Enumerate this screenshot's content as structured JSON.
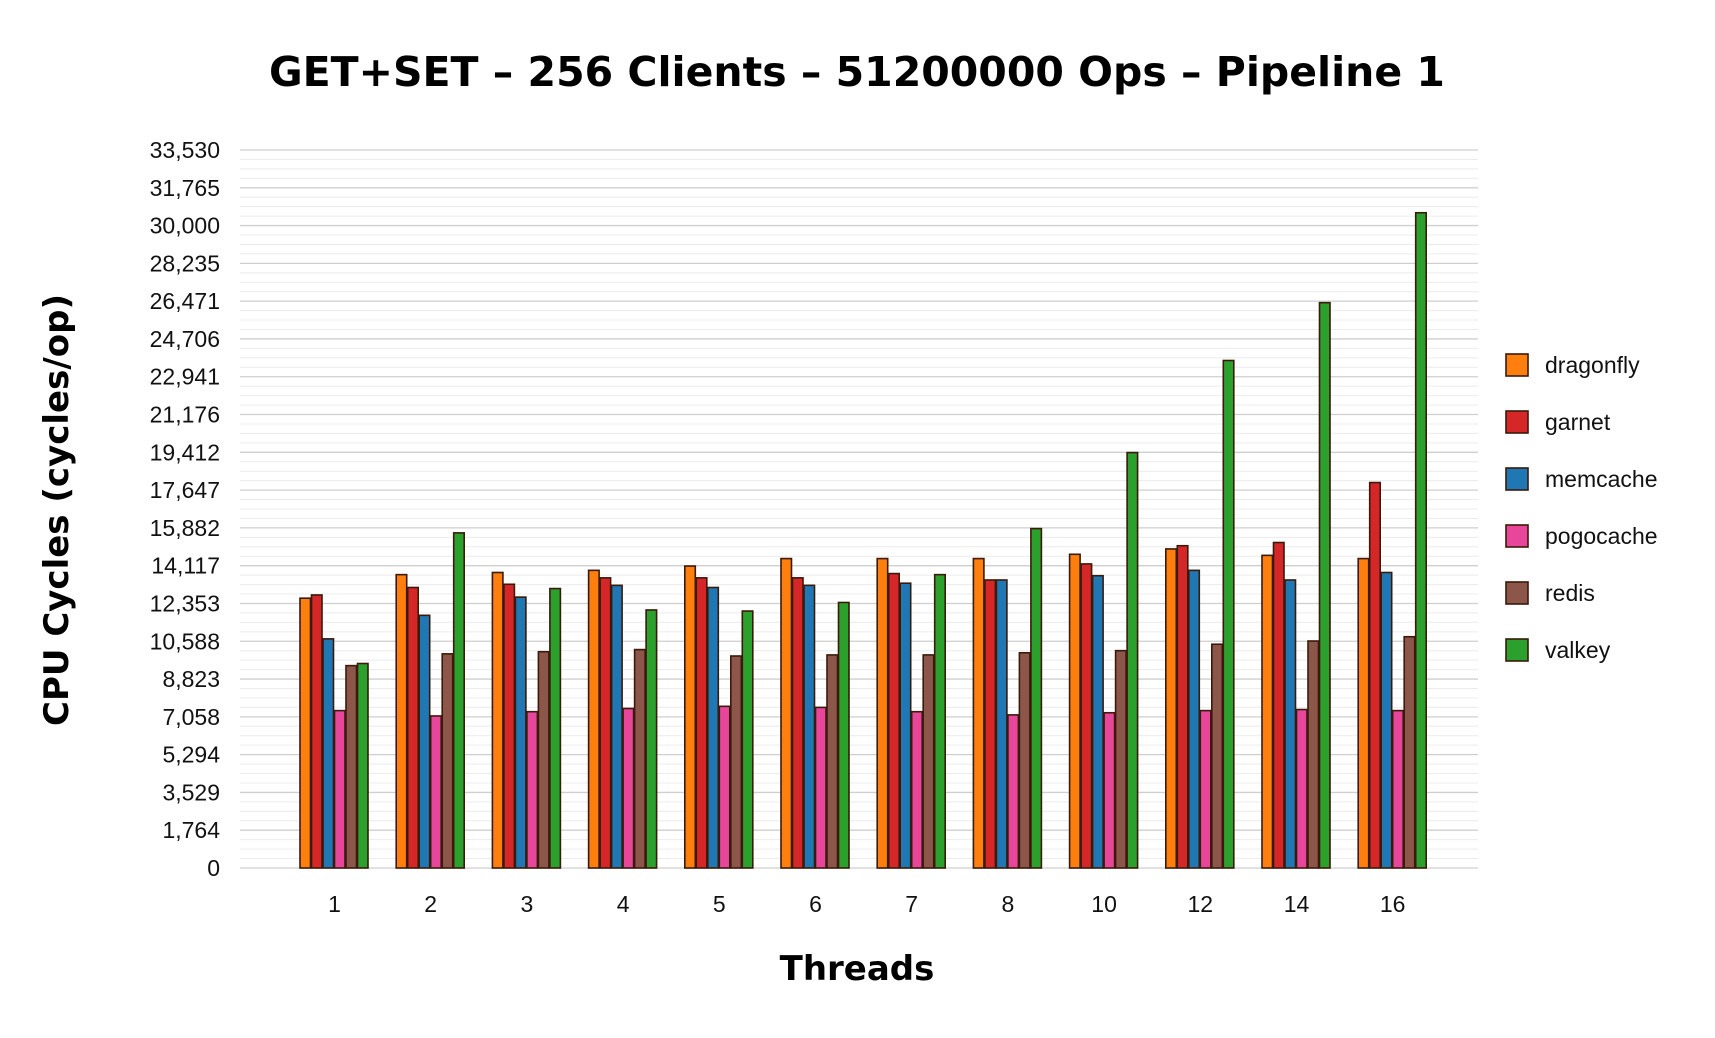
{
  "chart_data": {
    "type": "bar",
    "title": "GET+SET – 256 Clients – 51200000 Ops – Pipeline 1",
    "xlabel": "Threads",
    "ylabel": "CPU Cycles (cycles/op)",
    "ylim": [
      0,
      33530
    ],
    "yticks": [
      "0",
      "1,764",
      "3,529",
      "5,294",
      "7,058",
      "8,823",
      "10,588",
      "12,353",
      "14,117",
      "15,882",
      "17,647",
      "19,412",
      "21,176",
      "22,941",
      "24,706",
      "26,471",
      "28,235",
      "30,000",
      "31,765",
      "33,530"
    ],
    "grid": true,
    "legend_position": "right",
    "categories": [
      "1",
      "2",
      "3",
      "4",
      "5",
      "6",
      "7",
      "8",
      "10",
      "12",
      "14",
      "16"
    ],
    "series": [
      {
        "name": "dragonfly",
        "color": "#ff7f0e",
        "values": [
          12600,
          13700,
          13800,
          13900,
          14100,
          14450,
          14450,
          14450,
          14650,
          14900,
          14600,
          14450
        ]
      },
      {
        "name": "garnet",
        "color": "#d62728",
        "values": [
          12750,
          13100,
          13250,
          13550,
          13550,
          13550,
          13750,
          13450,
          14200,
          15050,
          15200,
          18000
        ]
      },
      {
        "name": "memcache",
        "color": "#1f77b4",
        "values": [
          10700,
          11800,
          12650,
          13200,
          13100,
          13200,
          13300,
          13450,
          13650,
          13900,
          13450,
          13800
        ]
      },
      {
        "name": "pogocache",
        "color": "#e7469b",
        "values": [
          7350,
          7100,
          7300,
          7450,
          7550,
          7500,
          7300,
          7150,
          7250,
          7350,
          7400,
          7350
        ]
      },
      {
        "name": "redis",
        "color": "#8c564b",
        "values": [
          9450,
          10000,
          10100,
          10200,
          9900,
          9950,
          9950,
          10050,
          10150,
          10450,
          10600,
          10800
        ]
      },
      {
        "name": "valkey",
        "color": "#2ca02c",
        "values": [
          9550,
          15650,
          13050,
          12050,
          12000,
          12400,
          13700,
          15850,
          19400,
          23700,
          26400,
          30600
        ]
      }
    ]
  }
}
